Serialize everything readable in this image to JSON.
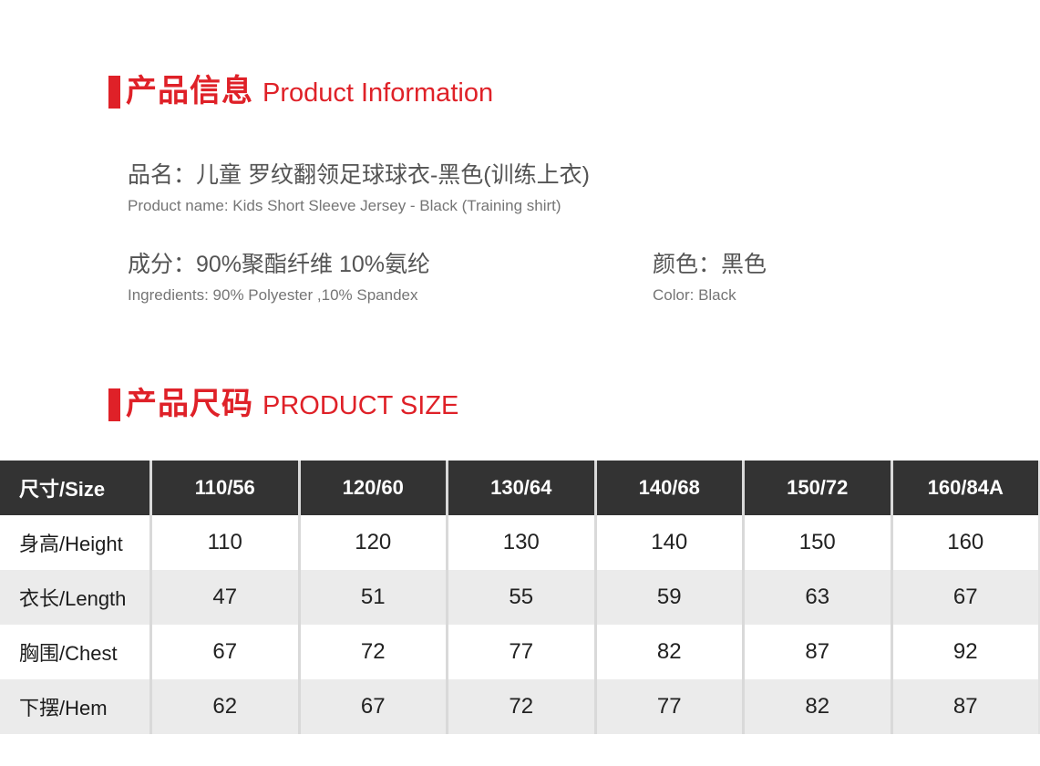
{
  "colors": {
    "accent": "#df2128",
    "table_header_bg": "#333333",
    "table_row_alt": "#ebebeb",
    "table_divider": "#d9d9d9",
    "text_primary": "#545454",
    "text_secondary": "#757575",
    "table_text": "#222222"
  },
  "info": {
    "heading_zh": "产品信息",
    "heading_en": "Product Information",
    "product_name_zh": "品名：儿童 罗纹翻领足球球衣-黑色(训练上衣)",
    "product_name_en": "Product name: Kids Short Sleeve Jersey - Black (Training shirt)",
    "ingredients_zh": "成分：90%聚酯纤维 10%氨纶",
    "ingredients_en": "Ingredients: 90% Polyester ,10% Spandex",
    "color_zh": "颜色：黑色",
    "color_en": "Color: Black"
  },
  "size": {
    "heading_zh": "产品尺码",
    "heading_en": "PRODUCT SIZE"
  },
  "size_table": {
    "header": [
      "尺寸/Size",
      "110/56",
      "120/60",
      "130/64",
      "140/68",
      "150/72",
      "160/84A"
    ],
    "rows": [
      {
        "label": "身高/Height",
        "values": [
          "110",
          "120",
          "130",
          "140",
          "150",
          "160"
        ]
      },
      {
        "label": "衣长/Length",
        "values": [
          "47",
          "51",
          "55",
          "59",
          "63",
          "67"
        ]
      },
      {
        "label": "胸围/Chest",
        "values": [
          "67",
          "72",
          "77",
          "82",
          "87",
          "92"
        ]
      },
      {
        "label": "下摆/Hem",
        "values": [
          "62",
          "67",
          "72",
          "77",
          "82",
          "87"
        ]
      }
    ]
  }
}
